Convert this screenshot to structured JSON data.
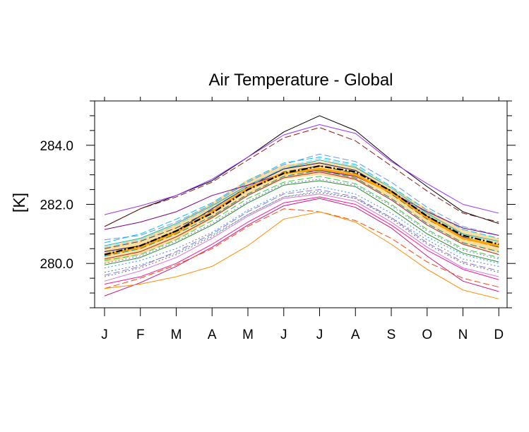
{
  "chart_data": {
    "type": "line",
    "title": "Air Temperature - Global",
    "xlabel": "",
    "ylabel": "[K]",
    "categories": [
      "J",
      "F",
      "M",
      "A",
      "M",
      "J",
      "J",
      "A",
      "S",
      "O",
      "N",
      "D"
    ],
    "y_ticks": [
      "280.0",
      "282.0",
      "284.0"
    ],
    "y_tick_values": [
      280.0,
      282.0,
      284.0
    ],
    "ylim": [
      278.5,
      285.5
    ],
    "grid": false,
    "legend": "none",
    "band": {
      "color": "#ffd27f",
      "lower": [
        280.0,
        280.3,
        280.8,
        281.5,
        282.3,
        282.85,
        283.0,
        282.8,
        282.2,
        281.35,
        280.65,
        280.35
      ],
      "upper": [
        280.55,
        280.85,
        281.35,
        282.05,
        282.85,
        283.35,
        283.45,
        283.3,
        282.6,
        281.85,
        281.15,
        280.85
      ]
    },
    "series": [
      {
        "color": "#000000",
        "dash": "solid",
        "width": 1.0,
        "values": [
          281.25,
          281.85,
          282.3,
          282.8,
          283.6,
          284.45,
          285.0,
          284.5,
          283.5,
          282.6,
          281.75,
          281.35
        ]
      },
      {
        "color": "#8b1a1a",
        "dash": "dashed",
        "width": 1.0,
        "values": [
          281.25,
          281.85,
          282.25,
          282.75,
          283.5,
          284.25,
          284.6,
          284.15,
          283.3,
          282.45,
          281.7,
          281.4
        ]
      },
      {
        "color": "#9b30ff",
        "dash": "solid",
        "width": 1.0,
        "values": [
          281.65,
          281.95,
          282.3,
          282.85,
          283.6,
          284.35,
          284.7,
          284.4,
          283.45,
          282.7,
          282.0,
          281.7
        ]
      },
      {
        "color": "#6495ed",
        "dash": "dashed",
        "width": 1.0,
        "values": [
          280.8,
          280.95,
          281.4,
          282.0,
          282.75,
          283.35,
          283.7,
          283.45,
          282.75,
          281.9,
          281.25,
          280.95
        ]
      },
      {
        "color": "#00bfff",
        "dash": "dashed",
        "width": 1.0,
        "values": [
          280.7,
          281.0,
          281.5,
          282.05,
          282.8,
          283.4,
          283.6,
          283.35,
          282.6,
          281.8,
          281.15,
          280.85
        ]
      },
      {
        "color": "#20b2aa",
        "dash": "solid",
        "width": 1.0,
        "values": [
          280.6,
          280.85,
          281.35,
          281.95,
          282.65,
          283.2,
          283.5,
          283.25,
          282.55,
          281.7,
          281.0,
          280.75
        ]
      },
      {
        "color": "#191970",
        "dash": "solid",
        "width": 1.0,
        "values": [
          280.4,
          280.6,
          281.1,
          281.85,
          282.6,
          283.2,
          283.4,
          283.15,
          282.45,
          281.6,
          280.9,
          280.55
        ]
      },
      {
        "color": "#800080",
        "dash": "solid",
        "width": 1.0,
        "values": [
          281.15,
          281.4,
          281.75,
          282.3,
          282.65,
          283.05,
          283.15,
          282.95,
          282.4,
          281.75,
          281.2,
          280.95
        ]
      },
      {
        "color": "#228b22",
        "dash": "solid",
        "width": 1.0,
        "values": [
          279.95,
          280.2,
          280.7,
          281.3,
          282.05,
          282.65,
          282.8,
          282.6,
          281.85,
          281.0,
          280.35,
          280.05
        ]
      },
      {
        "color": "#32cd32",
        "dash": "dashed",
        "width": 1.0,
        "values": [
          280.1,
          280.3,
          280.8,
          281.45,
          282.2,
          282.75,
          282.95,
          282.7,
          282.0,
          281.15,
          280.5,
          280.2
        ]
      },
      {
        "color": "#ff1493",
        "dash": "solid",
        "width": 1.0,
        "values": [
          279.3,
          279.55,
          280.0,
          280.65,
          281.4,
          282.05,
          282.25,
          282.0,
          281.3,
          280.45,
          279.8,
          279.45
        ]
      },
      {
        "color": "#c71585",
        "dash": "solid",
        "width": 1.0,
        "values": [
          278.9,
          279.35,
          279.9,
          280.55,
          281.3,
          281.95,
          282.2,
          281.9,
          281.2,
          280.25,
          279.4,
          279.05
        ]
      },
      {
        "color": "#ff4500",
        "dash": "dashed",
        "width": 1.0,
        "values": [
          279.15,
          279.5,
          279.95,
          280.5,
          281.25,
          281.85,
          281.75,
          281.45,
          280.85,
          280.05,
          279.5,
          279.2
        ]
      },
      {
        "color": "#ff8c00",
        "dash": "solid",
        "width": 1.0,
        "values": [
          279.15,
          279.3,
          279.55,
          279.9,
          280.6,
          281.5,
          281.75,
          281.4,
          280.65,
          279.8,
          279.1,
          278.8
        ]
      },
      {
        "color": "#4682b4",
        "dash": "dotted",
        "width": 1.0,
        "values": [
          279.7,
          279.95,
          280.35,
          280.95,
          281.65,
          282.25,
          282.45,
          282.2,
          281.55,
          280.8,
          280.15,
          279.9
        ]
      },
      {
        "color": "#1e90ff",
        "dash": "dotted",
        "width": 1.0,
        "values": [
          279.85,
          280.1,
          280.5,
          281.05,
          281.8,
          282.4,
          282.6,
          282.35,
          281.7,
          280.9,
          280.3,
          280.0
        ]
      },
      {
        "color": "#9370db",
        "dash": "dashed",
        "width": 1.0,
        "values": [
          279.6,
          279.9,
          280.4,
          281.0,
          281.75,
          282.35,
          282.5,
          282.25,
          281.55,
          280.7,
          280.05,
          279.75
        ]
      },
      {
        "color": "#da70d6",
        "dash": "solid",
        "width": 1.0,
        "values": [
          279.4,
          279.75,
          280.2,
          280.85,
          281.6,
          282.2,
          282.35,
          282.1,
          281.4,
          280.55,
          279.85,
          279.55
        ]
      },
      {
        "color": "#696969",
        "dash": "dotted",
        "width": 1.0,
        "values": [
          279.55,
          279.85,
          280.3,
          280.9,
          281.65,
          282.25,
          282.4,
          282.2,
          281.5,
          280.65,
          280.0,
          279.7
        ]
      },
      {
        "color": "#008b8b",
        "dash": "dashed",
        "width": 1.0,
        "values": [
          280.25,
          280.5,
          281.0,
          281.6,
          282.35,
          282.95,
          283.15,
          282.9,
          282.2,
          281.35,
          280.7,
          280.4
        ]
      },
      {
        "color": "#b22222",
        "dash": "solid",
        "width": 1.0,
        "values": [
          280.15,
          280.4,
          280.9,
          281.55,
          282.3,
          282.9,
          283.1,
          282.85,
          282.15,
          281.3,
          280.65,
          280.3
        ]
      },
      {
        "color": "#7b68ee",
        "dash": "dotted",
        "width": 1.0,
        "values": [
          280.0,
          280.25,
          280.75,
          281.35,
          282.1,
          282.7,
          282.85,
          282.65,
          281.95,
          281.1,
          280.45,
          280.15
        ]
      },
      {
        "color": "#2f4f4f",
        "dash": "dashed",
        "width": 1.0,
        "values": [
          280.5,
          280.75,
          281.2,
          281.8,
          282.5,
          283.1,
          283.3,
          283.05,
          282.35,
          281.5,
          280.85,
          280.55
        ]
      },
      {
        "color": "#87ceeb",
        "dash": "dashed",
        "width": 1.0,
        "values": [
          280.55,
          280.8,
          281.3,
          281.9,
          282.6,
          283.25,
          283.55,
          283.3,
          282.55,
          281.65,
          280.95,
          280.7
        ]
      },
      {
        "color": "#ffa500",
        "dash": "solid",
        "width": 3.0,
        "values": [
          280.3,
          280.55,
          281.05,
          281.75,
          282.55,
          283.05,
          283.2,
          283.0,
          282.4,
          281.55,
          280.85,
          280.6
        ]
      },
      {
        "color": "#000000",
        "dash": "dashdot",
        "width": 2.2,
        "values": [
          280.3,
          280.6,
          281.1,
          281.7,
          282.5,
          283.05,
          283.3,
          283.1,
          282.45,
          281.6,
          280.95,
          280.65
        ]
      }
    ]
  }
}
